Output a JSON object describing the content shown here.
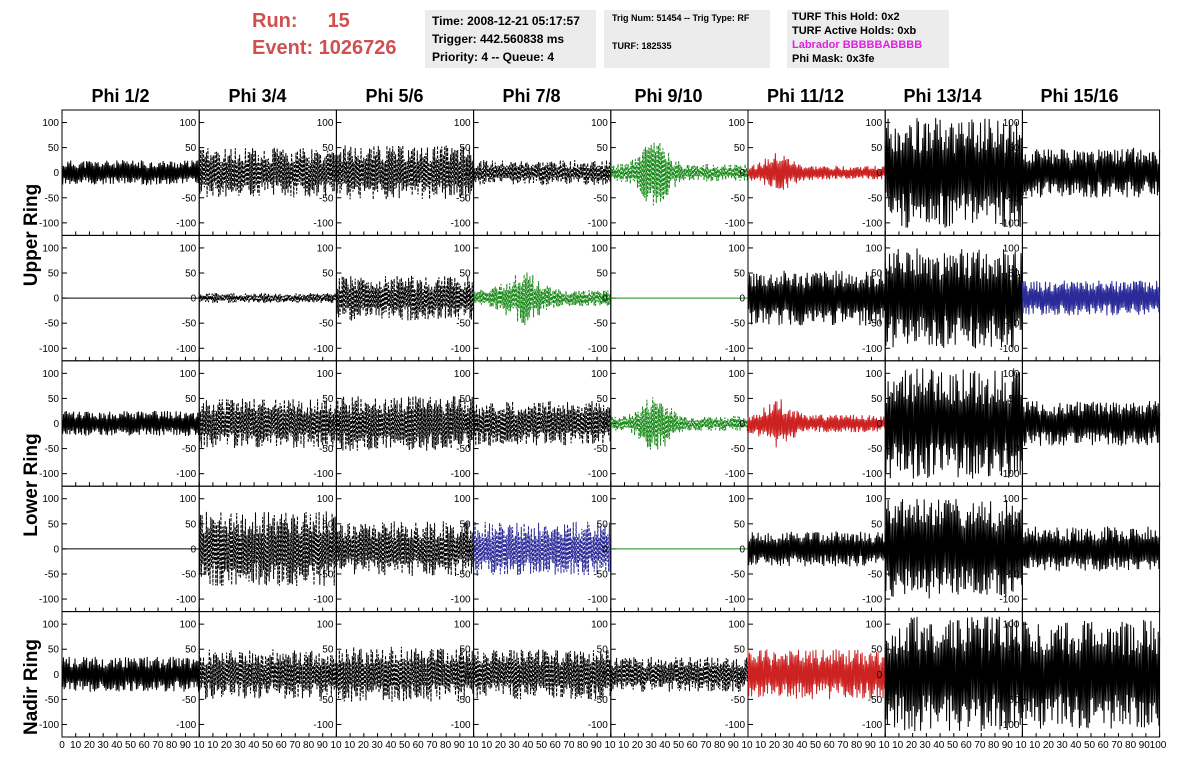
{
  "run": {
    "run_label": "Run:",
    "run_value": "15",
    "event_label": "Event:",
    "event_value": "1026726"
  },
  "info": {
    "time": "Time: 2008-12-21 05:17:57",
    "trigger": "Trigger: 442.560838 ms",
    "priority": "Priority: 4 -- Queue: 4",
    "trig": "Trig Num: 51454 -- Trig Type: RF",
    "turf": "TURF: 182535",
    "hold": "TURF This Hold: 0x2",
    "active": "TURF Active Holds: 0xb",
    "labrador": "Labrador BBBBBABBBB",
    "phimask": "Phi Mask: 0x3fe"
  },
  "colors": {
    "black": "#000000",
    "green": "#1a8a1a",
    "red": "#cc2222",
    "blue": "#2a2a99",
    "run_text": "#d05050",
    "labrador": "#e020e0"
  },
  "chart_data": {
    "type": "line",
    "column_headers": [
      "Phi 1/2",
      "Phi 3/4",
      "Phi 5/6",
      "Phi 7/8",
      "Phi 9/10",
      "Phi 11/12",
      "Phi 13/14",
      "Phi 15/16"
    ],
    "row_headers": [
      "Upper Ring",
      "Lower Ring",
      "Nadir Ring"
    ],
    "xlim": [
      0,
      100
    ],
    "ylim": [
      -125,
      125
    ],
    "y_ticks": [
      -100,
      -50,
      0,
      50,
      100
    ],
    "x_ticks": [
      0,
      10,
      20,
      30,
      40,
      50,
      60,
      70,
      80,
      90,
      100
    ],
    "x_tick_strip": [
      "0",
      "10",
      "20",
      "30",
      "40",
      "50",
      "60",
      "70",
      "80",
      "90",
      "10",
      "10",
      "20",
      "30",
      "40",
      "50",
      "60",
      "70",
      "80",
      "90",
      "10",
      "10",
      "20",
      "30",
      "40",
      "50",
      "60",
      "70",
      "80",
      "90",
      "10",
      "10",
      "20",
      "30",
      "40",
      "50",
      "60",
      "70",
      "80",
      "90",
      "10",
      "10",
      "20",
      "30",
      "40",
      "50",
      "60",
      "70",
      "80",
      "90",
      "10",
      "10",
      "20",
      "30",
      "40",
      "50",
      "60",
      "70",
      "80",
      "90",
      "10",
      "10",
      "20",
      "30",
      "40",
      "50",
      "60",
      "70",
      "80",
      "90",
      "10",
      "10",
      "20",
      "30",
      "40",
      "50",
      "60",
      "70",
      "80",
      "90",
      "100"
    ],
    "panels": [
      [
        {
          "amp": 25,
          "color": "black",
          "dash": false,
          "env": "flat"
        },
        {
          "amp": 50,
          "color": "black",
          "dash": true,
          "env": "flat"
        },
        {
          "amp": 55,
          "color": "black",
          "dash": true,
          "env": "flat"
        },
        {
          "amp": 25,
          "color": "black",
          "dash": true,
          "env": "flat"
        },
        {
          "amp": 70,
          "color": "green",
          "dash": true,
          "env": "peak30"
        },
        {
          "amp": 40,
          "color": "red",
          "dash": false,
          "env": "peak20"
        },
        {
          "amp": 110,
          "color": "black",
          "dash": false,
          "env": "flat"
        },
        {
          "amp": 50,
          "color": "black",
          "dash": false,
          "env": "flat"
        }
      ],
      [
        {
          "amp": 0,
          "color": "black",
          "dash": false,
          "env": "flat"
        },
        {
          "amp": 10,
          "color": "black",
          "dash": true,
          "env": "flat"
        },
        {
          "amp": 45,
          "color": "black",
          "dash": true,
          "env": "flat"
        },
        {
          "amp": 55,
          "color": "green",
          "dash": true,
          "env": "peak35"
        },
        {
          "amp": 0,
          "color": "green",
          "dash": false,
          "env": "flat"
        },
        {
          "amp": 55,
          "color": "black",
          "dash": false,
          "env": "flat"
        },
        {
          "amp": 100,
          "color": "black",
          "dash": false,
          "env": "flat"
        },
        {
          "amp": 35,
          "color": "blue",
          "dash": false,
          "env": "flat"
        }
      ],
      [
        {
          "amp": 25,
          "color": "black",
          "dash": false,
          "env": "flat"
        },
        {
          "amp": 50,
          "color": "black",
          "dash": true,
          "env": "flat"
        },
        {
          "amp": 55,
          "color": "black",
          "dash": true,
          "env": "flat"
        },
        {
          "amp": 45,
          "color": "black",
          "dash": true,
          "env": "flat"
        },
        {
          "amp": 60,
          "color": "green",
          "dash": true,
          "env": "peak30"
        },
        {
          "amp": 50,
          "color": "red",
          "dash": false,
          "env": "peak20"
        },
        {
          "amp": 110,
          "color": "black",
          "dash": false,
          "env": "flat"
        },
        {
          "amp": 45,
          "color": "black",
          "dash": false,
          "env": "flat"
        }
      ],
      [
        {
          "amp": 0,
          "color": "black",
          "dash": false,
          "env": "flat"
        },
        {
          "amp": 75,
          "color": "black",
          "dash": true,
          "env": "flat"
        },
        {
          "amp": 55,
          "color": "black",
          "dash": true,
          "env": "flat"
        },
        {
          "amp": 55,
          "color": "blue",
          "dash": true,
          "env": "flat"
        },
        {
          "amp": 0,
          "color": "green",
          "dash": false,
          "env": "flat"
        },
        {
          "amp": 35,
          "color": "black",
          "dash": false,
          "env": "flat"
        },
        {
          "amp": 100,
          "color": "black",
          "dash": false,
          "env": "flat"
        },
        {
          "amp": 45,
          "color": "black",
          "dash": false,
          "env": "flat"
        }
      ],
      [
        {
          "amp": 35,
          "color": "black",
          "dash": false,
          "env": "flat"
        },
        {
          "amp": 50,
          "color": "black",
          "dash": true,
          "env": "flat"
        },
        {
          "amp": 55,
          "color": "black",
          "dash": true,
          "env": "flat"
        },
        {
          "amp": 50,
          "color": "black",
          "dash": true,
          "env": "flat"
        },
        {
          "amp": 35,
          "color": "black",
          "dash": true,
          "env": "flat"
        },
        {
          "amp": 50,
          "color": "red",
          "dash": false,
          "env": "flat"
        },
        {
          "amp": 115,
          "color": "black",
          "dash": false,
          "env": "flat"
        },
        {
          "amp": 110,
          "color": "black",
          "dash": false,
          "env": "flat"
        }
      ]
    ]
  }
}
